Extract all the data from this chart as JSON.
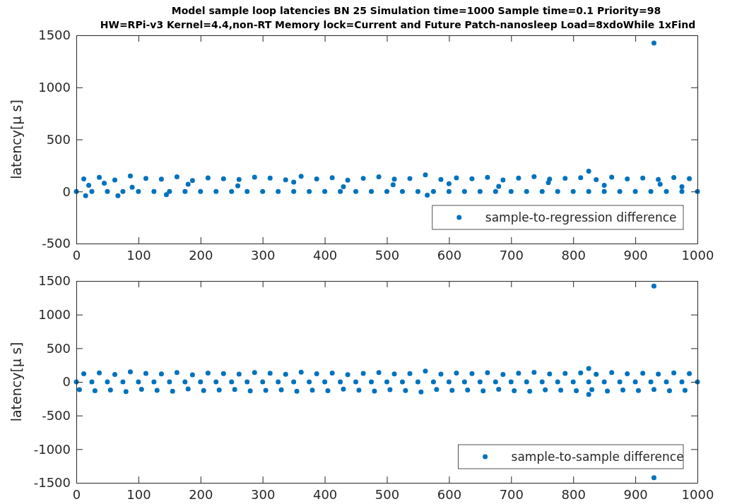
{
  "chart_data": [
    {
      "type": "scatter",
      "title": "Model sample loop latencies BN 25    Simulation time=1000 Sample time=0.1 Priority=98",
      "subtitle": "HW=RPi-v3 Kernel=4.4,non-RT Memory lock=Current and Future  Patch-nanosleep Load=8xdoWhile 1xFind",
      "ylabel": "latency[μ s]",
      "xlim": [
        0,
        1000
      ],
      "ylim": [
        -500,
        1500
      ],
      "xticks": [
        0,
        100,
        200,
        300,
        400,
        500,
        600,
        700,
        800,
        900,
        1000
      ],
      "yticks": [
        -500,
        0,
        500,
        1000,
        1500
      ],
      "legend": "bottom right",
      "marker": "circle",
      "series": [
        {
          "name": "sample-to-regression difference",
          "color": "#0072bd",
          "x": [
            0,
            25,
            50,
            75,
            100,
            125,
            150,
            175,
            200,
            225,
            250,
            275,
            300,
            325,
            350,
            375,
            400,
            425,
            450,
            475,
            500,
            525,
            550,
            575,
            600,
            625,
            650,
            675,
            700,
            725,
            750,
            775,
            800,
            825,
            850,
            875,
            900,
            925,
            950,
            975,
            1000,
            12,
            37,
            62,
            87,
            112,
            137,
            162,
            187,
            212,
            237,
            262,
            287,
            312,
            337,
            362,
            387,
            412,
            437,
            462,
            487,
            512,
            537,
            562,
            587,
            612,
            637,
            662,
            687,
            712,
            737,
            762,
            787,
            812,
            837,
            862,
            887,
            912,
            937,
            962,
            987,
            20,
            45,
            90,
            180,
            260,
            350,
            430,
            510,
            600,
            680,
            760,
            850,
            940,
            975,
            15,
            67,
            145,
            565,
            825,
            930
          ],
          "values": [
            0,
            0,
            0,
            0,
            0,
            0,
            0,
            0,
            0,
            0,
            0,
            0,
            0,
            0,
            0,
            0,
            0,
            0,
            0,
            0,
            0,
            0,
            0,
            0,
            0,
            0,
            0,
            0,
            0,
            0,
            0,
            0,
            0,
            0,
            0,
            0,
            0,
            0,
            0,
            0,
            0,
            120,
            135,
            110,
            150,
            125,
            118,
            140,
            105,
            130,
            122,
            115,
            138,
            128,
            112,
            145,
            120,
            132,
            108,
            126,
            140,
            118,
            124,
            160,
            115,
            130,
            122,
            136,
            110,
            128,
            142,
            119,
            126,
            133,
            114,
            138,
            121,
            129,
            116,
            134,
            123,
            60,
            80,
            40,
            70,
            55,
            90,
            45,
            65,
            75,
            50,
            85,
            60,
            70,
            45,
            -40,
            -40,
            -30,
            -35,
            195,
            1425
          ]
        }
      ]
    },
    {
      "type": "scatter",
      "ylabel": "latency[μ s]",
      "xlim": [
        0,
        1000
      ],
      "ylim": [
        -1500,
        1500
      ],
      "xticks": [
        0,
        100,
        200,
        300,
        400,
        500,
        600,
        700,
        800,
        900,
        1000
      ],
      "yticks": [
        -1500,
        -1000,
        -500,
        0,
        500,
        1000,
        1500
      ],
      "legend": "bottom right",
      "marker": "circle",
      "series": [
        {
          "name": "sample-to-sample difference",
          "color": "#0072bd",
          "x": [
            0,
            25,
            50,
            75,
            100,
            125,
            150,
            175,
            200,
            225,
            250,
            275,
            300,
            325,
            350,
            375,
            400,
            425,
            450,
            475,
            500,
            525,
            550,
            575,
            600,
            625,
            650,
            675,
            700,
            725,
            750,
            775,
            800,
            825,
            850,
            875,
            900,
            925,
            950,
            975,
            1000,
            12,
            37,
            62,
            87,
            112,
            137,
            162,
            187,
            212,
            237,
            262,
            287,
            312,
            337,
            362,
            387,
            412,
            437,
            462,
            487,
            512,
            537,
            562,
            587,
            612,
            637,
            662,
            687,
            712,
            737,
            762,
            787,
            812,
            837,
            862,
            887,
            912,
            937,
            962,
            987,
            5,
            30,
            55,
            80,
            105,
            130,
            155,
            180,
            205,
            230,
            255,
            280,
            305,
            330,
            355,
            380,
            405,
            430,
            455,
            480,
            505,
            530,
            555,
            580,
            605,
            630,
            655,
            680,
            705,
            730,
            755,
            780,
            805,
            830,
            855,
            880,
            905,
            930,
            955,
            980,
            930,
            930,
            825,
            825
          ],
          "values": [
            0,
            0,
            0,
            0,
            0,
            0,
            0,
            0,
            0,
            0,
            0,
            0,
            0,
            0,
            0,
            0,
            0,
            0,
            0,
            0,
            0,
            0,
            0,
            0,
            0,
            0,
            0,
            0,
            0,
            0,
            0,
            0,
            0,
            0,
            0,
            0,
            0,
            0,
            0,
            0,
            0,
            120,
            135,
            110,
            150,
            125,
            118,
            140,
            105,
            130,
            122,
            115,
            138,
            128,
            112,
            145,
            120,
            132,
            108,
            126,
            140,
            118,
            124,
            160,
            115,
            130,
            122,
            136,
            110,
            128,
            142,
            119,
            126,
            133,
            114,
            138,
            121,
            129,
            116,
            134,
            123,
            -115,
            -130,
            -120,
            -145,
            -110,
            -125,
            -138,
            -105,
            -128,
            -120,
            -112,
            -135,
            -126,
            -118,
            -140,
            -122,
            -130,
            -108,
            -124,
            -136,
            -116,
            -128,
            -150,
            -112,
            -126,
            -120,
            -134,
            -110,
            -130,
            -140,
            -118,
            -124,
            -132,
            -115,
            -136,
            -120,
            -128,
            -114,
            -132,
            -125,
            1425,
            -1425,
            200,
            -185
          ]
        }
      ]
    }
  ]
}
